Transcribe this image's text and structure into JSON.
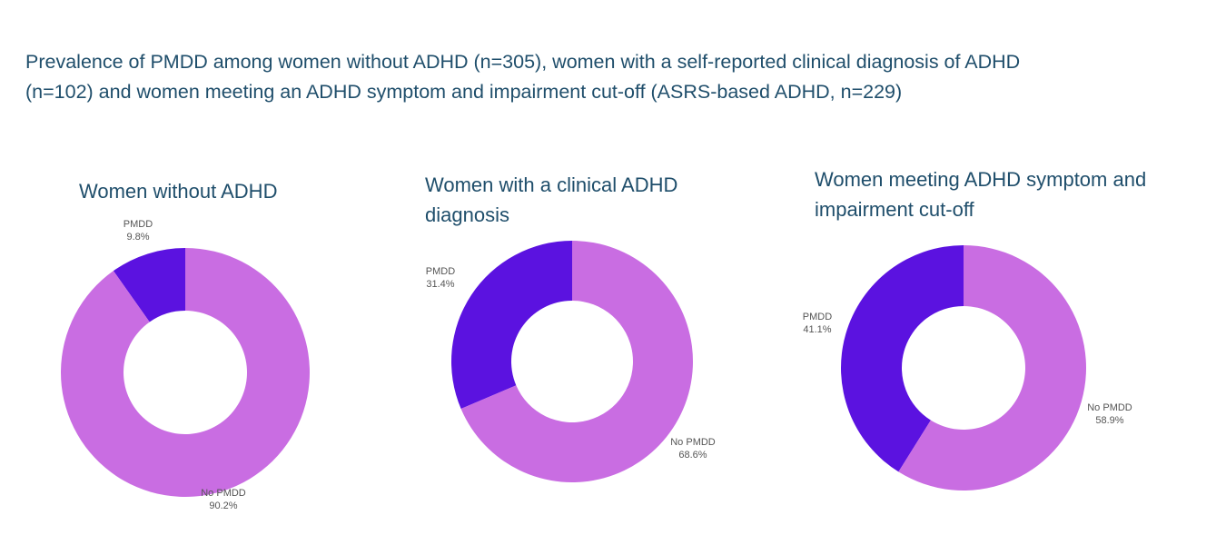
{
  "title_line1": "Prevalence of PMDD among women without ADHD (n=305), women with a self-reported clinical diagnosis of ADHD",
  "title_line2": "(n=102) and women meeting an ADHD symptom and impairment cut-off (ASRS-based ADHD, n=229)",
  "colors": {
    "PMDD": "#5b12e0",
    "No PMDD": "#c96de2",
    "title": "#1f4e6b"
  },
  "chart_data": [
    {
      "type": "pie",
      "donut": true,
      "title": "Women without ADHD",
      "categories": [
        "PMDD",
        "No PMDD"
      ],
      "values": [
        9.8,
        90.2
      ],
      "labels": [
        "9.8%",
        "90.2%"
      ]
    },
    {
      "type": "pie",
      "donut": true,
      "title": "Women with a clinical ADHD diagnosis",
      "title_lines": [
        "Women with a clinical ADHD",
        "diagnosis"
      ],
      "categories": [
        "PMDD",
        "No PMDD"
      ],
      "values": [
        31.4,
        68.6
      ],
      "labels": [
        "31.4%",
        "68.6%"
      ]
    },
    {
      "type": "pie",
      "donut": true,
      "title": "Women meeting ADHD symptom and impairment cut-off",
      "title_lines": [
        "Women meeting ADHD symptom and",
        "impairment cut-off"
      ],
      "categories": [
        "PMDD",
        "No PMDD"
      ],
      "values": [
        41.1,
        58.9
      ],
      "labels": [
        "41.1%",
        "58.9%"
      ]
    }
  ]
}
